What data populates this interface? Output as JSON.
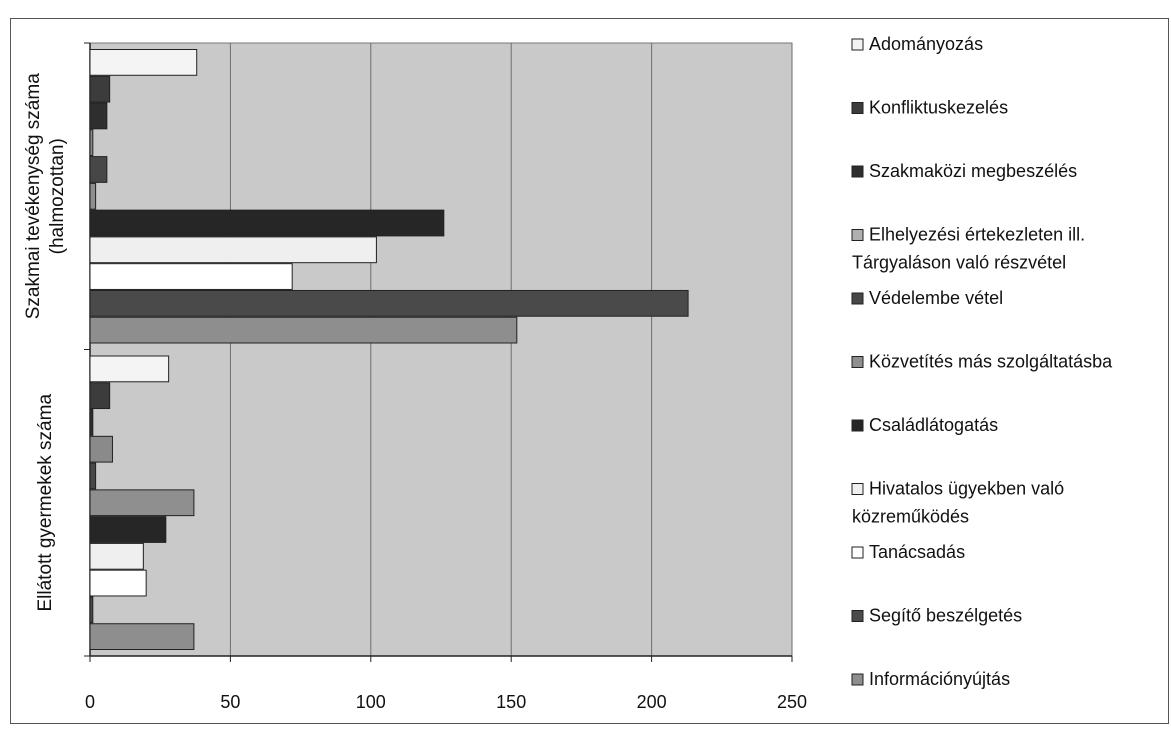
{
  "chart_data": {
    "type": "bar",
    "orientation": "horizontal",
    "title": "",
    "xlabel": "",
    "ylabel": "",
    "xlim": [
      0,
      250
    ],
    "x_ticks": [
      "0",
      "50",
      "100",
      "150",
      "200",
      "250"
    ],
    "grid": "vertical",
    "legend_placement": "right",
    "categories": [
      {
        "label_lines": [
          "Ellátott gyermekek száma"
        ]
      },
      {
        "label_lines": [
          "Szakmai tevékenység száma",
          "(halmozottan)"
        ]
      }
    ],
    "series": [
      {
        "name": "Adományozás",
        "color": "#f4f4f4",
        "values": [
          28,
          38
        ]
      },
      {
        "name": "Konfliktuskezelés",
        "color": "#3c3c3c",
        "values": [
          7,
          7
        ]
      },
      {
        "name": "Szakmaközi megbeszélés",
        "color": "#2e2e2e",
        "values": [
          1,
          6
        ]
      },
      {
        "name": "Elhelyezési értekezleten ill. Tárgyaláson való részvétel",
        "color": "#8a8a8a",
        "values": [
          8,
          1
        ]
      },
      {
        "name": "Védelembe vétel",
        "color": "#474747",
        "values": [
          2,
          6
        ]
      },
      {
        "name": "Közvetítés más szolgáltatásba",
        "color": "#8f8f8f",
        "values": [
          37,
          2
        ]
      },
      {
        "name": "Családlátogatás",
        "color": "#262626",
        "values": [
          27,
          126
        ]
      },
      {
        "name": "Hivatalos ügyekben való közreműködés",
        "color": "#efefef",
        "values": [
          19,
          102
        ]
      },
      {
        "name": "Tanácsadás",
        "color": "#ffffff",
        "values": [
          20,
          72
        ]
      },
      {
        "name": "Segítő beszélgetés",
        "color": "#4a4a4a",
        "values": [
          1,
          213
        ]
      },
      {
        "name": "Információnyújtás",
        "color": "#8e8e8e",
        "values": [
          37,
          152
        ]
      }
    ],
    "legend_entries": [
      {
        "lines": [
          "Adományozás"
        ],
        "color": "#f4f4f4"
      },
      {
        "lines": [
          "Konfliktuskezelés"
        ],
        "color": "#3c3c3c"
      },
      {
        "lines": [
          "Szakmaközi megbeszélés"
        ],
        "color": "#2e2e2e"
      },
      {
        "lines": [
          "Elhelyezési értekezleten ill.",
          "Tárgyaláson való részvétel"
        ],
        "color": "#b0b0b0"
      },
      {
        "lines": [
          "Védelembe vétel"
        ],
        "color": "#474747"
      },
      {
        "lines": [
          "Közvetítés más szolgáltatásba"
        ],
        "color": "#8f8f8f"
      },
      {
        "lines": [
          "Családlátogatás"
        ],
        "color": "#262626"
      },
      {
        "lines": [
          "Hivatalos ügyekben való",
          "közreműködés"
        ],
        "color": "#efefef"
      },
      {
        "lines": [
          "Tanácsadás"
        ],
        "color": "#ffffff"
      },
      {
        "lines": [
          "Segítő beszélgetés"
        ],
        "color": "#4a4a4a"
      },
      {
        "lines": [
          "Információnyújtás"
        ],
        "color": "#8e8e8e"
      }
    ],
    "plot_background": "#c9c9c9"
  }
}
